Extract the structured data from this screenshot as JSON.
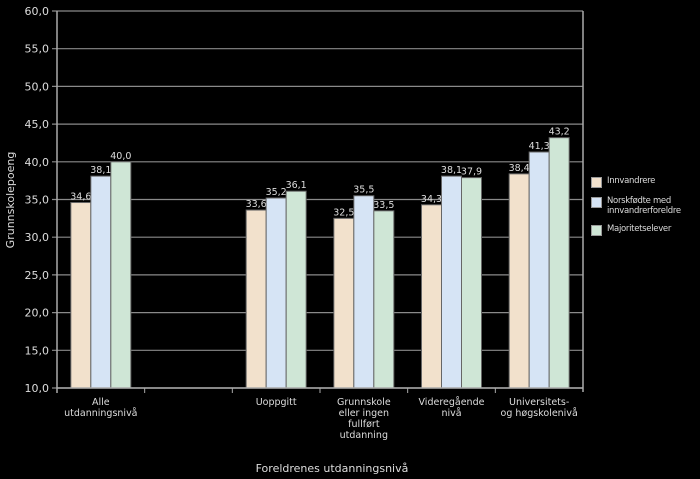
{
  "chart_data": {
    "type": "bar",
    "title": "",
    "xlabel": "Foreldrenes utdanningsnivå",
    "ylabel": "Grunnskolepoeng",
    "ylim": [
      10,
      60
    ],
    "yticks": [
      "10,0",
      "15,0",
      "20,0",
      "25,0",
      "30,0",
      "35,0",
      "40,0",
      "45,0",
      "50,0",
      "55,0",
      "60,0"
    ],
    "grid": true,
    "legend_position": "right",
    "categories": [
      [
        "Alle",
        "utdanningsnivå"
      ],
      [],
      [
        "Uoppgitt"
      ],
      [
        "Grunnskole",
        "eller ingen",
        "fullført",
        "utdanning"
      ],
      [
        "Videregående",
        "nivå"
      ],
      [
        "Universitets-",
        "og høgskolenivå"
      ]
    ],
    "series": [
      {
        "name": "Innvandrere",
        "color": "#f2e1cc",
        "values": [
          34.6,
          null,
          33.6,
          32.5,
          34.3,
          38.4
        ],
        "labels": [
          "34,6",
          "",
          "33,6",
          "32,5",
          "34,3",
          "38,4"
        ]
      },
      {
        "name": "Norskfødte med innvandrerforeldre",
        "color": "#d6e4f5",
        "values": [
          38.1,
          null,
          35.2,
          35.5,
          38.1,
          41.3
        ],
        "labels": [
          "38,1",
          "",
          "35,2",
          "35,5",
          "38,1",
          "41,3"
        ]
      },
      {
        "name": "Majoritetselever",
        "color": "#cfe6d6",
        "values": [
          40.0,
          null,
          36.1,
          33.5,
          37.9,
          43.2
        ],
        "labels": [
          "40,0",
          "",
          "36,1",
          "33,5",
          "37,9",
          "43,2"
        ]
      }
    ]
  },
  "legend": {
    "items": [
      {
        "label": "Innvandrere",
        "color": "#f2e1cc"
      },
      {
        "label": "Norskfødte med innvandrerforeldre",
        "color": "#d6e4f5"
      },
      {
        "label": "Majoritetselever",
        "color": "#cfe6d6"
      }
    ]
  }
}
